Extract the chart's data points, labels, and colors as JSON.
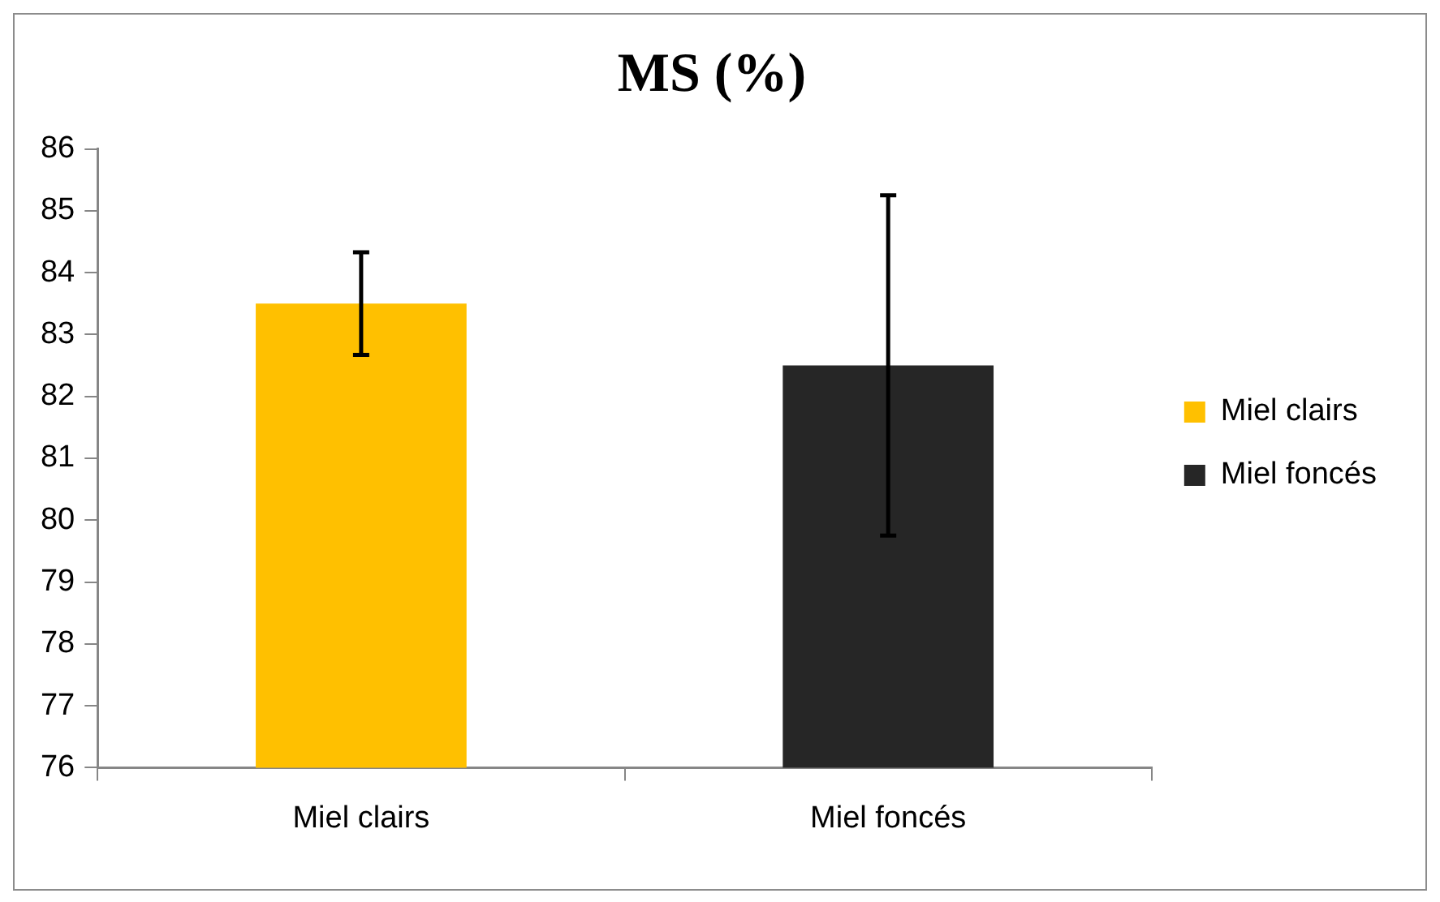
{
  "chart_data": {
    "type": "bar",
    "title": "MS (%)",
    "categories": [
      "Miel clairs",
      "Miel foncés"
    ],
    "series": [
      {
        "name": "Miel clairs",
        "color": "#ffc000",
        "values": [
          83.5,
          null
        ],
        "errors": [
          0.83,
          null
        ]
      },
      {
        "name": "Miel foncés",
        "color": "#262626",
        "values": [
          null,
          82.5
        ],
        "errors": [
          null,
          2.75
        ]
      }
    ],
    "ylim": [
      76,
      86
    ],
    "yticks": [
      76,
      77,
      78,
      79,
      80,
      81,
      82,
      83,
      84,
      85,
      86
    ],
    "grid": false,
    "legend": "right"
  }
}
